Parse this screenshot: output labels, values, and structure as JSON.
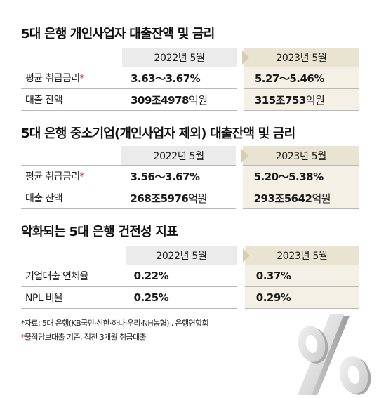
{
  "sections": [
    {
      "title": "5대 은행 개인사업자 대출잔액 및 금리",
      "year1": "2022년 5월",
      "year2": "2023년 5월",
      "rows": [
        {
          "label": "평균 취급금리",
          "star": "*",
          "v1": "3.63〜3.67%",
          "v1_unit": "",
          "v2": "5.27〜5.46%",
          "v2_unit": ""
        },
        {
          "label": "대출 잔액",
          "star": "",
          "v1": "309조4978",
          "v1_unit": "억원",
          "v2": "315조753",
          "v2_unit": "억원"
        }
      ]
    },
    {
      "title": "5대 은행 중소기업(개인사업자 제외) 대출잔액 및 금리",
      "year1": "2022년 5월",
      "year2": "2023년 5월",
      "rows": [
        {
          "label": "평균 취급금리",
          "star": "*",
          "v1": "3.56〜3.67%",
          "v1_unit": "",
          "v2": "5.20〜5.38%",
          "v2_unit": ""
        },
        {
          "label": "대출 잔액",
          "star": "",
          "v1": "268조5976",
          "v1_unit": "억원",
          "v2": "293조5642",
          "v2_unit": "억원"
        }
      ]
    },
    {
      "title": "악화되는 5대 은행 건전성 지표",
      "year1": "2022년 5월",
      "year2": "2023년 5월",
      "rows": [
        {
          "label": "기업대출 연체율",
          "star": "",
          "v1": "0.22%",
          "v1_unit": "",
          "v2": "0.37%",
          "v2_unit": ""
        },
        {
          "label": "NPL 비율",
          "star": "",
          "v1": "0.25%",
          "v1_unit": "",
          "v2": "0.29%",
          "v2_unit": ""
        }
      ]
    }
  ],
  "notes": {
    "note1": "*자료: 5대 은행(KB국민·신한·하나·우리·NH농협) , 은행연합회",
    "note2_star": "*",
    "note2": "물적담보대출 기준, 직전 3개월 취급대출"
  },
  "colors": {
    "header_2022": "#ebebeb",
    "header_2023": "#e9e3d1",
    "cell_2023": "#f4f0e6",
    "star": "#d42c2c"
  },
  "decor_icon": "percent-sign-3d-icon"
}
